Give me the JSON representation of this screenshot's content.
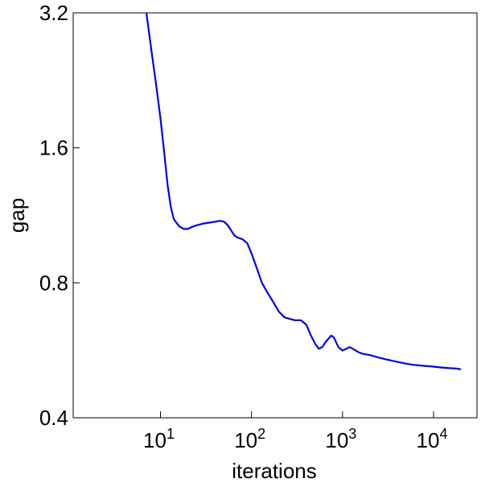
{
  "chart_data": {
    "type": "line",
    "xlabel": "iterations",
    "ylabel": "gap",
    "x_scale": "log",
    "y_scale": "log",
    "xlim": [
      1.1,
      30000
    ],
    "ylim": [
      0.4,
      3.2
    ],
    "grid": false,
    "x_ticks": [
      {
        "value": 10,
        "base": "10",
        "exp": "1"
      },
      {
        "value": 100,
        "base": "10",
        "exp": "2"
      },
      {
        "value": 1000,
        "base": "10",
        "exp": "3"
      },
      {
        "value": 10000,
        "base": "10",
        "exp": "4"
      }
    ],
    "y_ticks": [
      {
        "value": 0.4,
        "label": "0.4"
      },
      {
        "value": 0.8,
        "label": "0.8"
      },
      {
        "value": 1.6,
        "label": "1.6"
      },
      {
        "value": 3.2,
        "label": "3.2"
      }
    ],
    "series": [
      {
        "color": "#0000ee",
        "x": [
          7,
          8,
          9,
          10,
          11,
          12,
          13,
          14,
          16,
          18,
          20,
          22,
          25,
          30,
          35,
          40,
          45,
          50,
          55,
          60,
          65,
          70,
          80,
          90,
          100,
          115,
          130,
          150,
          170,
          200,
          230,
          260,
          300,
          350,
          400,
          450,
          500,
          550,
          600,
          650,
          700,
          750,
          800,
          850,
          900,
          1000,
          1100,
          1200,
          1300,
          1500,
          1700,
          2000,
          2500,
          3000,
          4000,
          5000,
          6000,
          8000,
          10000,
          12000,
          15000,
          18000,
          20000
        ],
        "y": [
          3.2,
          2.62,
          2.2,
          1.86,
          1.56,
          1.32,
          1.18,
          1.11,
          1.07,
          1.055,
          1.055,
          1.065,
          1.075,
          1.085,
          1.09,
          1.095,
          1.1,
          1.095,
          1.075,
          1.045,
          1.02,
          1.01,
          1.0,
          0.98,
          0.93,
          0.86,
          0.8,
          0.76,
          0.73,
          0.69,
          0.67,
          0.665,
          0.66,
          0.66,
          0.645,
          0.61,
          0.585,
          0.57,
          0.575,
          0.59,
          0.6,
          0.61,
          0.605,
          0.59,
          0.575,
          0.565,
          0.57,
          0.575,
          0.57,
          0.56,
          0.555,
          0.552,
          0.545,
          0.54,
          0.533,
          0.528,
          0.525,
          0.522,
          0.52,
          0.518,
          0.516,
          0.515,
          0.513
        ]
      }
    ]
  }
}
